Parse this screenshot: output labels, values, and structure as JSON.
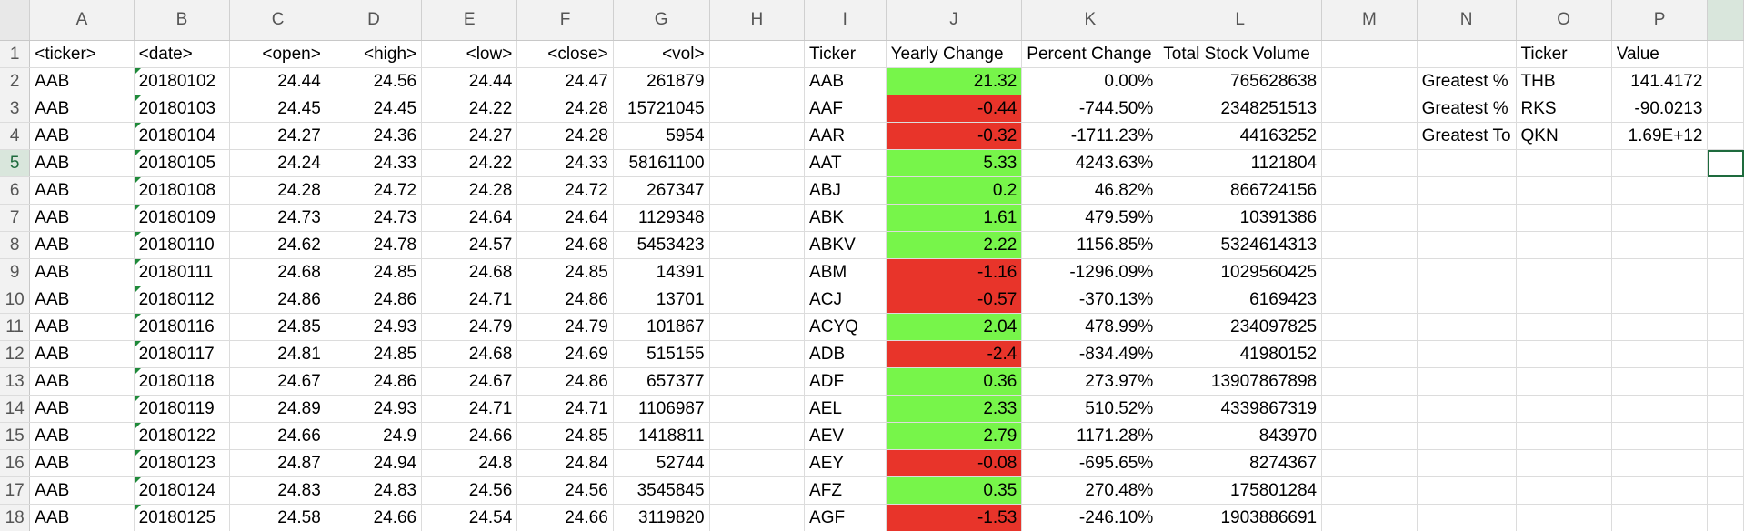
{
  "columns": [
    "A",
    "B",
    "C",
    "D",
    "E",
    "F",
    "G",
    "H",
    "I",
    "J",
    "K",
    "L",
    "M",
    "N",
    "O",
    "P"
  ],
  "rowNumbers": [
    "1",
    "2",
    "3",
    "4",
    "5",
    "6",
    "7",
    "8",
    "9",
    "10",
    "11",
    "12",
    "13",
    "14",
    "15",
    "16",
    "17",
    "18"
  ],
  "headers": {
    "A": "<ticker>",
    "B": "<date>",
    "C": "<open>",
    "D": "<high>",
    "E": "<low>",
    "F": "<close>",
    "G": "<vol>",
    "I": "Ticker",
    "J": "Yearly Change",
    "K": "Percent Change",
    "L": "Total Stock Volume",
    "O": "Ticker",
    "P": "Value"
  },
  "rawData": [
    [
      "AAB",
      "20180102",
      "24.44",
      "24.56",
      "24.44",
      "24.47",
      "261879"
    ],
    [
      "AAB",
      "20180103",
      "24.45",
      "24.45",
      "24.22",
      "24.28",
      "15721045"
    ],
    [
      "AAB",
      "20180104",
      "24.27",
      "24.36",
      "24.27",
      "24.28",
      "5954"
    ],
    [
      "AAB",
      "20180105",
      "24.24",
      "24.33",
      "24.22",
      "24.33",
      "58161100"
    ],
    [
      "AAB",
      "20180108",
      "24.28",
      "24.72",
      "24.28",
      "24.72",
      "267347"
    ],
    [
      "AAB",
      "20180109",
      "24.73",
      "24.73",
      "24.64",
      "24.64",
      "1129348"
    ],
    [
      "AAB",
      "20180110",
      "24.62",
      "24.78",
      "24.57",
      "24.68",
      "5453423"
    ],
    [
      "AAB",
      "20180111",
      "24.68",
      "24.85",
      "24.68",
      "24.85",
      "14391"
    ],
    [
      "AAB",
      "20180112",
      "24.86",
      "24.86",
      "24.71",
      "24.86",
      "13701"
    ],
    [
      "AAB",
      "20180116",
      "24.85",
      "24.93",
      "24.79",
      "24.79",
      "101867"
    ],
    [
      "AAB",
      "20180117",
      "24.81",
      "24.85",
      "24.68",
      "24.69",
      "515155"
    ],
    [
      "AAB",
      "20180118",
      "24.67",
      "24.86",
      "24.67",
      "24.86",
      "657377"
    ],
    [
      "AAB",
      "20180119",
      "24.89",
      "24.93",
      "24.71",
      "24.71",
      "1106987"
    ],
    [
      "AAB",
      "20180122",
      "24.66",
      "24.9",
      "24.66",
      "24.85",
      "1418811"
    ],
    [
      "AAB",
      "20180123",
      "24.87",
      "24.94",
      "24.8",
      "24.84",
      "52744"
    ],
    [
      "AAB",
      "20180124",
      "24.83",
      "24.83",
      "24.56",
      "24.56",
      "3545845"
    ],
    [
      "AAB",
      "20180125",
      "24.58",
      "24.66",
      "24.54",
      "24.66",
      "3119820"
    ]
  ],
  "summary": [
    [
      "AAB",
      "21.32",
      "0.00%",
      "765628638"
    ],
    [
      "AAF",
      "-0.44",
      "-744.50%",
      "2348251513"
    ],
    [
      "AAR",
      "-0.32",
      "-1711.23%",
      "44163252"
    ],
    [
      "AAT",
      "5.33",
      "4243.63%",
      "1121804"
    ],
    [
      "ABJ",
      "0.2",
      "46.82%",
      "866724156"
    ],
    [
      "ABK",
      "1.61",
      "479.59%",
      "10391386"
    ],
    [
      "ABKV",
      "2.22",
      "1156.85%",
      "5324614313"
    ],
    [
      "ABM",
      "-1.16",
      "-1296.09%",
      "1029560425"
    ],
    [
      "ACJ",
      "-0.57",
      "-370.13%",
      "6169423"
    ],
    [
      "ACYQ",
      "2.04",
      "478.99%",
      "234097825"
    ],
    [
      "ADB",
      "-2.4",
      "-834.49%",
      "41980152"
    ],
    [
      "ADF",
      "0.36",
      "273.97%",
      "13907867898"
    ],
    [
      "AEL",
      "2.33",
      "510.52%",
      "4339867319"
    ],
    [
      "AEV",
      "2.79",
      "1171.28%",
      "843970"
    ],
    [
      "AEY",
      "-0.08",
      "-695.65%",
      "8274367"
    ],
    [
      "AFZ",
      "0.35",
      "270.48%",
      "175801284"
    ],
    [
      "AGF",
      "-1.53",
      "-246.10%",
      "1903886691"
    ]
  ],
  "greatest": [
    [
      "Greatest %",
      "THB",
      "141.4172"
    ],
    [
      "Greatest %",
      "RKS",
      "-90.0213"
    ],
    [
      "Greatest To",
      "QKN",
      "1.69E+12"
    ]
  ],
  "colors": {
    "positive": "#77f54a",
    "negative": "#e8342a",
    "header_bg": "#f2f2f2",
    "selection": "#1e6b3d"
  }
}
